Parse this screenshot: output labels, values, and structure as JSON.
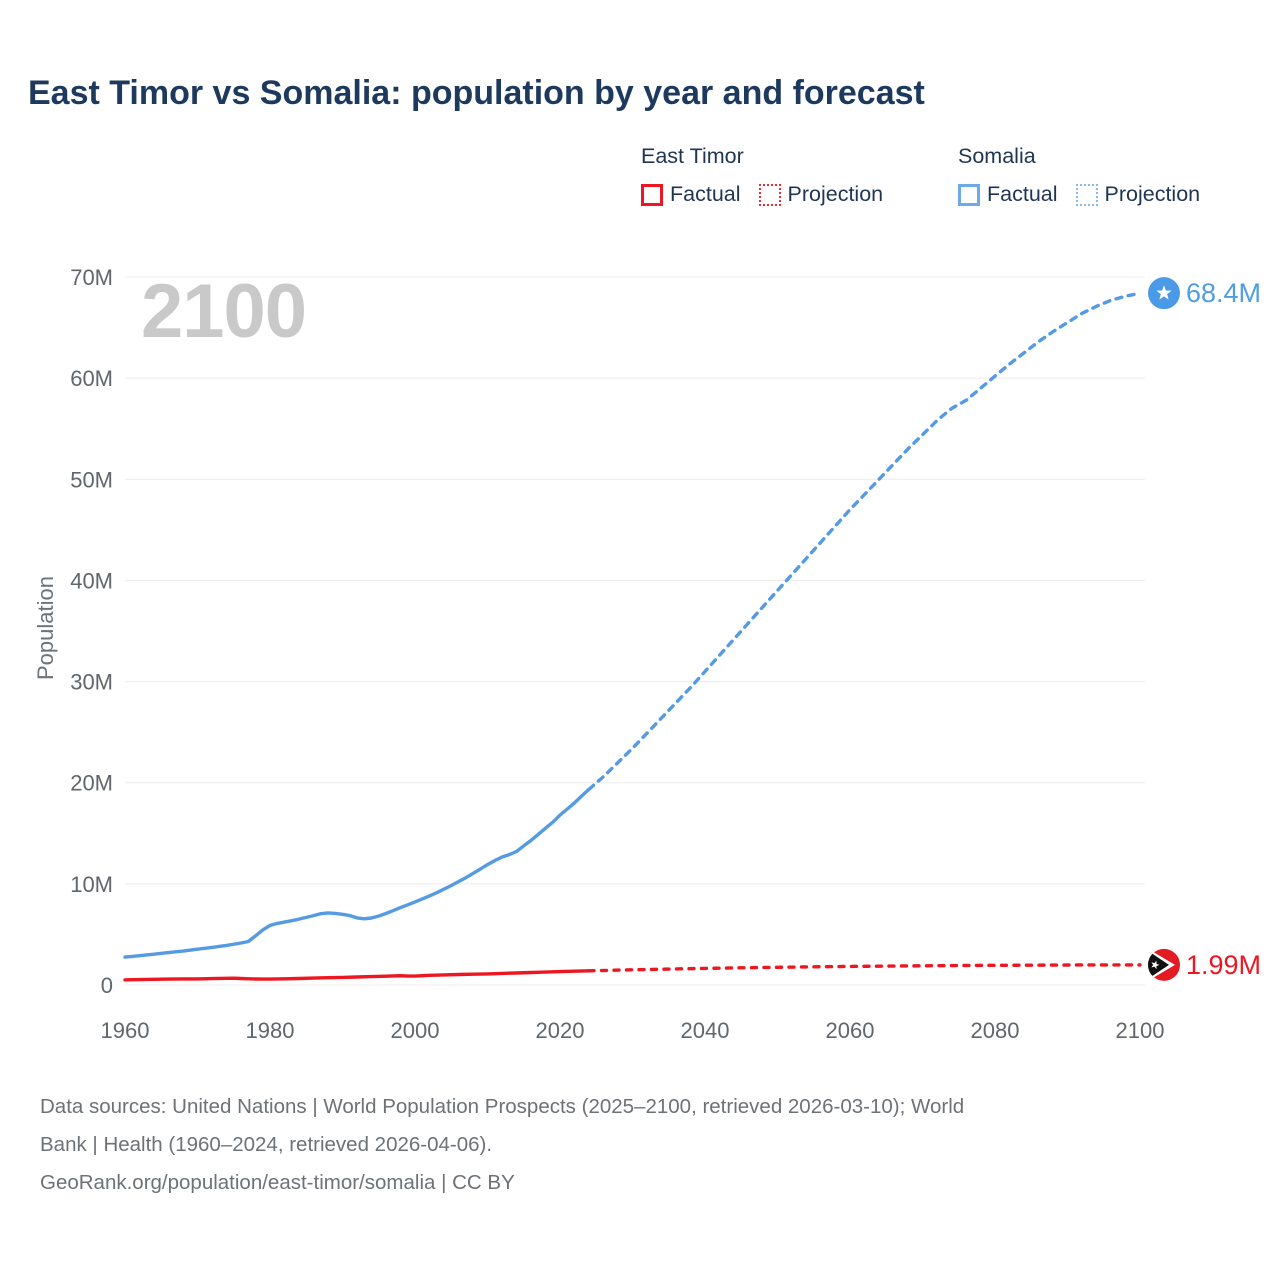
{
  "title": "East Timor vs Somalia: population by year and forecast",
  "watermark": "2100",
  "legend": {
    "groups": [
      {
        "name": "East Timor",
        "color": "#ed1722",
        "items": [
          {
            "label": "Factual",
            "style": "solid"
          },
          {
            "label": "Projection",
            "style": "dotted"
          }
        ]
      },
      {
        "name": "Somalia",
        "color": "#5b9fe3",
        "items": [
          {
            "label": "Factual",
            "style": "solid"
          },
          {
            "label": "Projection",
            "style": "dotted"
          }
        ]
      }
    ]
  },
  "chart_data": {
    "type": "line",
    "title": "East Timor vs Somalia: population by year and forecast",
    "xlabel": "",
    "ylabel": "Population",
    "unit": "millions",
    "xlim": [
      1960,
      2100
    ],
    "ylim": [
      0,
      70
    ],
    "grid": "horizontal",
    "x_ticks": [
      "1960",
      "1980",
      "2000",
      "2020",
      "2040",
      "2060",
      "2080",
      "2100"
    ],
    "y_ticks": [
      {
        "value": 0,
        "label": "0"
      },
      {
        "value": 10,
        "label": "10M"
      },
      {
        "value": 20,
        "label": "20M"
      },
      {
        "value": 30,
        "label": "30M"
      },
      {
        "value": 40,
        "label": "40M"
      },
      {
        "value": 50,
        "label": "50M"
      },
      {
        "value": 60,
        "label": "60M"
      },
      {
        "value": 70,
        "label": "70M"
      }
    ],
    "series": [
      {
        "id": "somalia-factual",
        "name": "Somalia Factual",
        "color": "#559be4",
        "style": "solid",
        "points": [
          [
            1960,
            2.76
          ],
          [
            1962,
            2.9
          ],
          [
            1964,
            3.05
          ],
          [
            1966,
            3.2
          ],
          [
            1968,
            3.35
          ],
          [
            1970,
            3.54
          ],
          [
            1972,
            3.72
          ],
          [
            1974,
            3.92
          ],
          [
            1976,
            4.15
          ],
          [
            1977,
            4.3
          ],
          [
            1978,
            4.85
          ],
          [
            1979,
            5.45
          ],
          [
            1980,
            5.89
          ],
          [
            1981,
            6.09
          ],
          [
            1982,
            6.22
          ],
          [
            1983,
            6.36
          ],
          [
            1984,
            6.52
          ],
          [
            1985,
            6.68
          ],
          [
            1986,
            6.86
          ],
          [
            1987,
            7.05
          ],
          [
            1988,
            7.13
          ],
          [
            1989,
            7.08
          ],
          [
            1990,
            6.99
          ],
          [
            1991,
            6.86
          ],
          [
            1992,
            6.63
          ],
          [
            1993,
            6.55
          ],
          [
            1994,
            6.62
          ],
          [
            1995,
            6.82
          ],
          [
            1996,
            7.07
          ],
          [
            1997,
            7.36
          ],
          [
            1998,
            7.65
          ],
          [
            1999,
            7.93
          ],
          [
            2000,
            8.22
          ],
          [
            2001,
            8.51
          ],
          [
            2002,
            8.81
          ],
          [
            2003,
            9.13
          ],
          [
            2004,
            9.48
          ],
          [
            2005,
            9.84
          ],
          [
            2006,
            10.22
          ],
          [
            2007,
            10.61
          ],
          [
            2008,
            11.03
          ],
          [
            2009,
            11.46
          ],
          [
            2010,
            11.9
          ],
          [
            2011,
            12.3
          ],
          [
            2012,
            12.66
          ],
          [
            2013,
            12.89
          ],
          [
            2014,
            13.2
          ],
          [
            2015,
            13.76
          ],
          [
            2016,
            14.3
          ],
          [
            2017,
            14.9
          ],
          [
            2018,
            15.5
          ],
          [
            2019,
            16.1
          ],
          [
            2020,
            16.8
          ],
          [
            2021,
            17.4
          ],
          [
            2022,
            18.0
          ],
          [
            2023,
            18.7
          ],
          [
            2024,
            19.35
          ]
        ]
      },
      {
        "id": "somalia-projection",
        "name": "Somalia Projection",
        "color": "#559be4",
        "style": "dashed",
        "dash": "6 6.5",
        "points": [
          [
            2024,
            19.35
          ],
          [
            2026,
            20.6
          ],
          [
            2028,
            22.0
          ],
          [
            2030,
            23.4
          ],
          [
            2032,
            24.9
          ],
          [
            2034,
            26.4
          ],
          [
            2036,
            27.9
          ],
          [
            2038,
            29.4
          ],
          [
            2040,
            31.0
          ],
          [
            2042,
            32.6
          ],
          [
            2044,
            34.2
          ],
          [
            2046,
            35.8
          ],
          [
            2048,
            37.4
          ],
          [
            2050,
            39.0
          ],
          [
            2052,
            40.6
          ],
          [
            2054,
            42.2
          ],
          [
            2056,
            43.8
          ],
          [
            2058,
            45.4
          ],
          [
            2060,
            47.0
          ],
          [
            2062,
            48.5
          ],
          [
            2064,
            50.0
          ],
          [
            2066,
            51.5
          ],
          [
            2068,
            53.0
          ],
          [
            2070,
            54.4
          ],
          [
            2072,
            55.8
          ],
          [
            2074,
            57.0
          ],
          [
            2076,
            57.8
          ],
          [
            2078,
            59.0
          ],
          [
            2080,
            60.2
          ],
          [
            2082,
            61.4
          ],
          [
            2084,
            62.5
          ],
          [
            2086,
            63.6
          ],
          [
            2088,
            64.6
          ],
          [
            2090,
            65.5
          ],
          [
            2092,
            66.4
          ],
          [
            2094,
            67.1
          ],
          [
            2096,
            67.7
          ],
          [
            2098,
            68.1
          ],
          [
            2100,
            68.4
          ]
        ]
      },
      {
        "id": "east-timor-factual",
        "name": "East Timor Factual",
        "color": "#ed1722",
        "style": "solid",
        "points": [
          [
            1960,
            0.5
          ],
          [
            1962,
            0.53
          ],
          [
            1964,
            0.56
          ],
          [
            1966,
            0.58
          ],
          [
            1968,
            0.6
          ],
          [
            1970,
            0.6
          ],
          [
            1972,
            0.63
          ],
          [
            1974,
            0.66
          ],
          [
            1975,
            0.67
          ],
          [
            1976,
            0.64
          ],
          [
            1977,
            0.61
          ],
          [
            1978,
            0.59
          ],
          [
            1979,
            0.58
          ],
          [
            1980,
            0.58
          ],
          [
            1982,
            0.61
          ],
          [
            1984,
            0.64
          ],
          [
            1986,
            0.68
          ],
          [
            1988,
            0.72
          ],
          [
            1990,
            0.75
          ],
          [
            1992,
            0.79
          ],
          [
            1994,
            0.83
          ],
          [
            1996,
            0.87
          ],
          [
            1998,
            0.92
          ],
          [
            1999,
            0.88
          ],
          [
            2000,
            0.88
          ],
          [
            2001,
            0.92
          ],
          [
            2002,
            0.96
          ],
          [
            2004,
            1.0
          ],
          [
            2006,
            1.04
          ],
          [
            2008,
            1.07
          ],
          [
            2010,
            1.1
          ],
          [
            2012,
            1.15
          ],
          [
            2014,
            1.19
          ],
          [
            2016,
            1.24
          ],
          [
            2018,
            1.28
          ],
          [
            2020,
            1.32
          ],
          [
            2022,
            1.36
          ],
          [
            2024,
            1.4
          ]
        ]
      },
      {
        "id": "east-timor-projection",
        "name": "East Timor Projection",
        "color": "#ed1722",
        "style": "dashed",
        "dash": "5 7.5",
        "points": [
          [
            2024,
            1.4
          ],
          [
            2030,
            1.5
          ],
          [
            2035,
            1.57
          ],
          [
            2040,
            1.64
          ],
          [
            2045,
            1.7
          ],
          [
            2050,
            1.75
          ],
          [
            2055,
            1.8
          ],
          [
            2060,
            1.84
          ],
          [
            2065,
            1.87
          ],
          [
            2070,
            1.9
          ],
          [
            2075,
            1.93
          ],
          [
            2080,
            1.95
          ],
          [
            2085,
            1.96
          ],
          [
            2090,
            1.98
          ],
          [
            2095,
            1.99
          ],
          [
            2100,
            1.99
          ]
        ]
      }
    ],
    "end_labels": [
      {
        "series_index": 1,
        "country": "Somalia",
        "text": "68.4M",
        "color": "#4f9de2",
        "flag_icon": "somalia-flag",
        "badge_color": "#4a9ae8"
      },
      {
        "series_index": 3,
        "country": "East Timor",
        "text": "1.99M",
        "color": "#ed1722",
        "flag_icon": "east-timor-flag",
        "badge_color": "#e31b23"
      }
    ]
  },
  "footer": {
    "lines": [
      "Data sources: United Nations | World Population Prospects (2025–2100, retrieved 2026-03-10); World",
      "Bank | Health (1960–2024, retrieved 2026-04-06).",
      "GeoRank.org/population/east-timor/somalia | CC BY"
    ]
  }
}
